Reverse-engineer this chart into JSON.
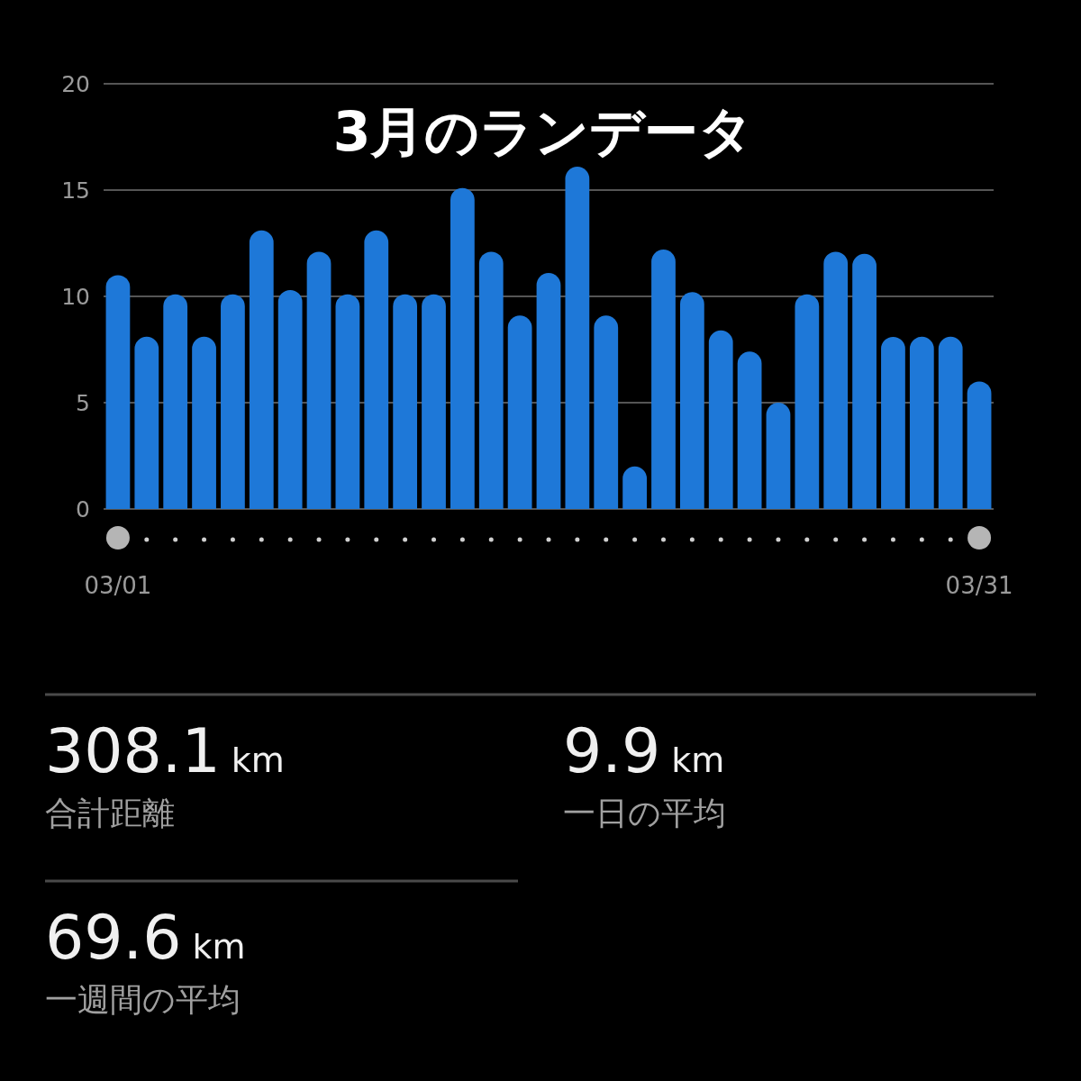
{
  "chart_data": {
    "type": "bar",
    "title": "3月のランデータ",
    "categories": [
      "03/01",
      null,
      null,
      null,
      null,
      null,
      null,
      null,
      null,
      null,
      null,
      null,
      null,
      null,
      null,
      null,
      null,
      null,
      null,
      null,
      null,
      null,
      null,
      null,
      null,
      null,
      null,
      null,
      null,
      null,
      "03/31"
    ],
    "values": [
      11,
      8.1,
      10.1,
      8.1,
      10.1,
      13.1,
      10.3,
      12.1,
      10.1,
      13.1,
      10.1,
      10.1,
      15.1,
      12.1,
      9.1,
      11.1,
      16.1,
      9.1,
      2,
      12.2,
      10.2,
      8.4,
      7.4,
      5,
      10.1,
      12.1,
      12,
      8.1,
      8.1,
      8.1,
      6
    ],
    "color": "#1e78d8",
    "ylim": [
      0,
      20
    ],
    "yticks": [
      0,
      5,
      10,
      15,
      20
    ],
    "grid": "y",
    "annotations": [
      "308.1 km",
      "合計距離",
      "9.9 km",
      "一日の平均",
      "69.6 km",
      "一週間の平均"
    ]
  }
}
